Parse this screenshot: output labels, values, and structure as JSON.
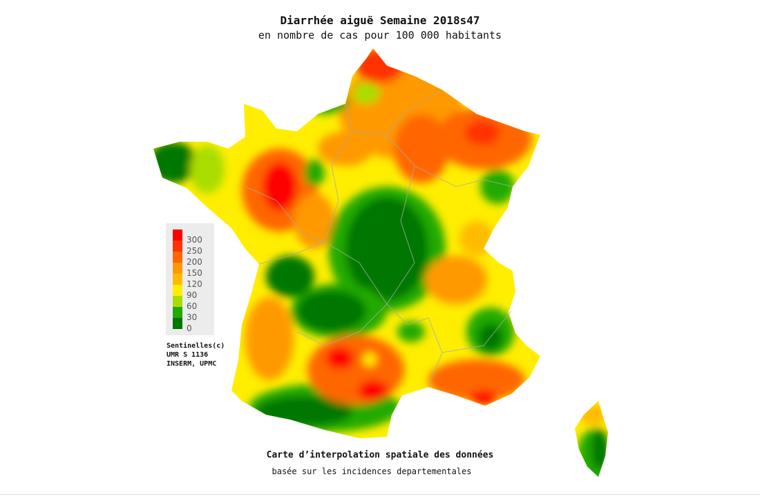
{
  "header": {
    "title": "Diarrhée aiguë Semaine 2018s47",
    "subtitle": "en nombre de cas pour 100 000 habitants"
  },
  "legend": [
    {
      "label": "300",
      "color": "#ff0000"
    },
    {
      "label": "250",
      "color": "#ff3300"
    },
    {
      "label": "200",
      "color": "#ff6600"
    },
    {
      "label": "150",
      "color": "#ff9900"
    },
    {
      "label": "120",
      "color": "#ffbb00"
    },
    {
      "label": "90",
      "color": "#ffee00"
    },
    {
      "label": "60",
      "color": "#aadd00"
    },
    {
      "label": "30",
      "color": "#22aa00"
    },
    {
      "label": "0",
      "color": "#007700"
    }
  ],
  "credit": [
    "Sentinelles(c)",
    "UMR S 1136",
    "INSERM, UPMC"
  ],
  "footer": {
    "title": "Carte d’interpolation spatiale des données",
    "subtitle": "basée sur les incidences departementales"
  }
}
